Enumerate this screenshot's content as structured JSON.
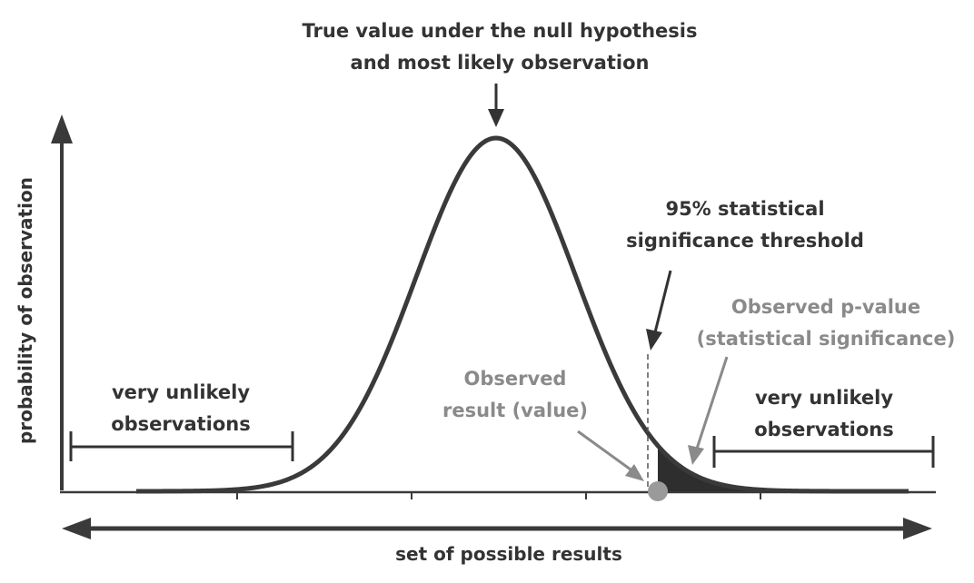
{
  "labels": {
    "null_hypothesis": [
      "True value under the null hypothesis",
      "and most likely observation"
    ],
    "threshold": [
      "95% statistical",
      "significance threshold"
    ],
    "p_value": [
      "Observed p-value",
      "(statistical significance)"
    ],
    "observed_result": [
      "Observed",
      "result (value)"
    ],
    "unlikely_left": [
      "very unlikely",
      "observations"
    ],
    "unlikely_right": [
      "very unlikely",
      "observations"
    ],
    "y_axis": "probability of observation",
    "x_axis": "set of possible results"
  },
  "colors": {
    "curve": "#3a3a3a",
    "tail_fill": "#2e2e2e",
    "grey_annotation": "#8a8a8a",
    "observed_dot": "#9a9a9a",
    "dark_text": "#333333"
  }
}
